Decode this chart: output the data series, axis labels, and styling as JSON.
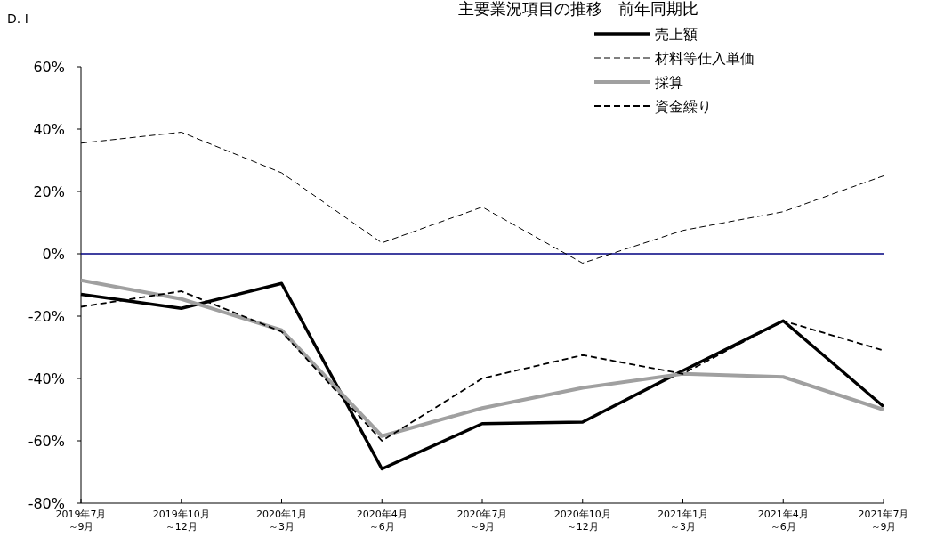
{
  "chart_data": {
    "type": "line",
    "title": "主要業況項目の推移　前年同期比",
    "ylabel": "D. I",
    "categories": [
      "2019年7月～9月",
      "2019年10月～12月",
      "2020年1月～3月",
      "2020年4月～6月",
      "2020年7月～9月",
      "2020年10月～12月",
      "2021年1月～3月",
      "2021年4月～6月",
      "2021年7月～9月"
    ],
    "series": [
      {
        "name": "売上額",
        "color": "#000000",
        "line_style": "solid",
        "values": [
          -13,
          -17.5,
          -9.5,
          -69,
          -54.5,
          -54,
          -37.5,
          -21.5,
          -49
        ]
      },
      {
        "name": "材料等仕入単価",
        "color": "#000000",
        "line_style": "dashed",
        "values": [
          35.5,
          39,
          26,
          3.5,
          15,
          -3,
          7.5,
          13.5,
          25
        ]
      },
      {
        "name": "採算",
        "color": "#a0a0a0",
        "line_style": "solid",
        "values": [
          -8.5,
          -14.5,
          -24.5,
          -58.5,
          -49.5,
          -43,
          -38.5,
          -39.5,
          -50
        ]
      },
      {
        "name": "資金繰り",
        "color": "#000000",
        "line_style": "dashed",
        "values": [
          -17,
          -12,
          -25,
          -60,
          -40,
          -32.5,
          -38.5,
          -21.5,
          -31
        ]
      }
    ],
    "ylim": [
      -80,
      60
    ],
    "yticks": [
      {
        "value": -80,
        "label": "-80%"
      },
      {
        "value": -60,
        "label": "-60%"
      },
      {
        "value": -40,
        "label": "-40%"
      },
      {
        "value": -20,
        "label": "-20%"
      },
      {
        "value": 0,
        "label": "0%"
      },
      {
        "value": 20,
        "label": "20%"
      },
      {
        "value": 40,
        "label": "40%"
      },
      {
        "value": 60,
        "label": "60%"
      }
    ],
    "ref_lines": [
      {
        "axis": "y",
        "value": 0,
        "color": "#000080"
      }
    ],
    "legend": "top right",
    "grid": false
  }
}
